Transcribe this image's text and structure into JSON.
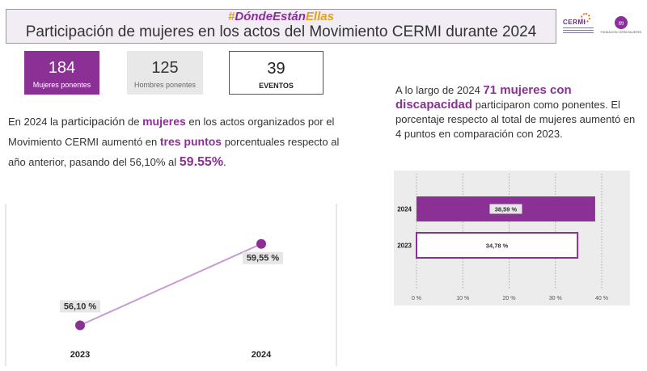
{
  "header": {
    "hashtag_hash": "#",
    "hashtag_main": "DóndeEstán",
    "hashtag_end": "Ellas",
    "title": "Participación de mujeres en los actos del Movimiento CERMI durante 2024"
  },
  "logos": {
    "cermi": "CERMI",
    "fundacion": "FUNDACIÓN CERMI MUJERES",
    "fundacion_mark": "m"
  },
  "stats": {
    "women": {
      "value": "184",
      "label": "Mujeres ponentes"
    },
    "men": {
      "value": "125",
      "label": "Hombres ponentes"
    },
    "events": {
      "value": "39",
      "label": "EVENTOS"
    }
  },
  "left_text": {
    "p1": "En 2024 la ",
    "p2": "participación",
    "p3": " de ",
    "p4": "mujeres",
    "p5": " en los actos organizados por el Movimiento CERMI aumentó  en ",
    "p6": "tres puntos",
    "p7": " porcentuales respecto al año anterior, pasando del 56,10% al ",
    "p8": "59.55%",
    "p9": "."
  },
  "right_text": {
    "p1": "A lo largo de 2024  ",
    "p2": "71 mujeres con discapacidad",
    "p3": " participaron como ponentes. El porcentaje respecto al total de mujeres aumentó en 4 puntos en comparación con 2023."
  },
  "colors": {
    "purple": "#8b3094",
    "line": "#c79bd3",
    "label_bg": "#e6e6e6"
  },
  "chart_data": [
    {
      "type": "line",
      "title": "",
      "categories": [
        "2023",
        "2024"
      ],
      "series": [
        {
          "values": [
            56.1,
            59.55
          ]
        }
      ],
      "data_labels": [
        "56,10 %",
        "59,55 %"
      ],
      "ylim": [
        55.5,
        60.5
      ],
      "grid": false
    },
    {
      "type": "bar",
      "orientation": "horizontal",
      "title": "",
      "categories": [
        "2024",
        "2023"
      ],
      "series": [
        {
          "values": [
            38.59,
            34.78
          ]
        }
      ],
      "data_labels": [
        "38,59 %",
        "34,78 %"
      ],
      "xticks": [
        "0 %",
        "10 %",
        "20 %",
        "30 %",
        "40 %"
      ],
      "xlim": [
        0,
        40
      ],
      "grid": true
    }
  ]
}
